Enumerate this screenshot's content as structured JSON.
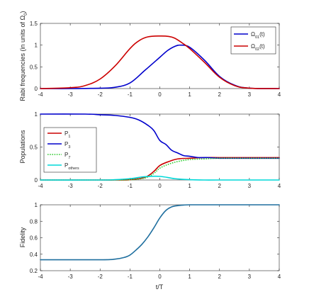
{
  "chart_data": [
    {
      "type": "line",
      "ylabel": "Rabi frequencies (in units of Ω0)",
      "ylabel_parts": {
        "main": "Rabi frequencies (in units of Ω",
        "sub": "0",
        "close": ")"
      },
      "xlim": [
        -4,
        4
      ],
      "ylim": [
        0,
        1.5
      ],
      "xticks": [
        -4,
        -3,
        -2,
        -1,
        0,
        1,
        2,
        3,
        4
      ],
      "yticks": [
        0,
        0.5,
        1,
        1.5
      ],
      "legend_position": "top-right",
      "series": [
        {
          "name": "Ω01(t)",
          "label_main": "Ω",
          "label_sub": "01",
          "label_suffix": "(t)",
          "color": "#0000cc",
          "x": [
            -4,
            -3,
            -2,
            -1.5,
            -1,
            -0.5,
            0,
            0.25,
            0.5,
            0.7,
            1,
            1.5,
            2,
            2.5,
            3,
            4
          ],
          "y": [
            0,
            0,
            0.01,
            0.03,
            0.13,
            0.42,
            0.72,
            0.87,
            0.97,
            1.0,
            0.95,
            0.65,
            0.28,
            0.08,
            0.01,
            0
          ]
        },
        {
          "name": "Ω02(t)",
          "label_main": "Ω",
          "label_sub": "02",
          "label_suffix": "(t)",
          "color": "#cc0000",
          "x": [
            -4,
            -3,
            -2.5,
            -2,
            -1.5,
            -1,
            -0.7,
            -0.4,
            0,
            0.3,
            0.5,
            0.75,
            1,
            1.5,
            2,
            2.5,
            3,
            4
          ],
          "y": [
            0,
            0.02,
            0.07,
            0.22,
            0.52,
            0.92,
            1.1,
            1.19,
            1.21,
            1.2,
            1.16,
            1.05,
            0.92,
            0.6,
            0.26,
            0.07,
            0.01,
            0
          ]
        }
      ]
    },
    {
      "type": "line",
      "ylabel": "Populations",
      "xlim": [
        -4,
        4
      ],
      "ylim": [
        0,
        1
      ],
      "xticks": [
        -4,
        -3,
        -2,
        -1,
        0,
        1,
        2,
        3,
        4
      ],
      "yticks": [
        0,
        0.5,
        1
      ],
      "legend_position": "middle-left",
      "series": [
        {
          "name": "P1",
          "label_main": "P",
          "label_sub": "1",
          "label_suffix": "",
          "color": "#cc0000",
          "dash": "solid",
          "x": [
            -4,
            -2,
            -1.5,
            -1,
            -0.5,
            -0.2,
            0,
            0.3,
            0.6,
            1,
            1.5,
            2,
            3,
            4
          ],
          "y": [
            0,
            0,
            0,
            0.005,
            0.04,
            0.13,
            0.22,
            0.28,
            0.32,
            0.33,
            0.34,
            0.34,
            0.34,
            0.34
          ]
        },
        {
          "name": "P3",
          "label_main": "P",
          "label_sub": "3",
          "label_suffix": "",
          "color": "#0000cc",
          "dash": "solid",
          "x": [
            -4,
            -2.5,
            -2,
            -1.5,
            -1,
            -0.7,
            -0.4,
            -0.2,
            0,
            0.2,
            0.4,
            0.6,
            0.8,
            1,
            1.3,
            1.6,
            2,
            3,
            4
          ],
          "y": [
            1,
            1,
            0.99,
            0.98,
            0.95,
            0.91,
            0.83,
            0.75,
            0.6,
            0.54,
            0.45,
            0.41,
            0.37,
            0.36,
            0.34,
            0.34,
            0.33,
            0.33,
            0.33
          ]
        },
        {
          "name": "P7",
          "label_main": "P",
          "label_sub": "7",
          "label_suffix": "",
          "color": "#33cc33",
          "dash": "dotted",
          "x": [
            -4,
            -2,
            -1.5,
            -1,
            -0.5,
            -0.2,
            0,
            0.3,
            0.6,
            1,
            1.5,
            2,
            3,
            4
          ],
          "y": [
            0,
            0,
            0,
            0.003,
            0.03,
            0.1,
            0.18,
            0.24,
            0.28,
            0.31,
            0.32,
            0.33,
            0.33,
            0.33
          ]
        },
        {
          "name": "Pothers",
          "label_main": "P",
          "label_sub": "others",
          "label_suffix": "",
          "color": "#00d8d8",
          "dash": "solid",
          "x": [
            -4,
            -2,
            -1.5,
            -1,
            -0.5,
            0,
            0.5,
            1,
            1.5,
            2,
            4
          ],
          "y": [
            0,
            0,
            0.005,
            0.02,
            0.05,
            0.055,
            0.02,
            0.005,
            0,
            0,
            0
          ]
        }
      ]
    },
    {
      "type": "line",
      "ylabel": "Fidelity",
      "xlabel": "t/T",
      "xlim": [
        -4,
        4
      ],
      "ylim": [
        0.2,
        1
      ],
      "xticks": [
        -4,
        -3,
        -2,
        -1,
        0,
        1,
        2,
        3,
        4
      ],
      "yticks": [
        0.2,
        0.4,
        0.6,
        0.8,
        1
      ],
      "series": [
        {
          "name": "Fidelity",
          "color": "#1f6f9f",
          "x": [
            -4,
            -2,
            -1.5,
            -1.2,
            -1,
            -0.8,
            -0.6,
            -0.4,
            -0.2,
            0,
            0.2,
            0.4,
            0.6,
            0.8,
            1,
            1.5,
            2,
            4
          ],
          "y": [
            0.333,
            0.333,
            0.34,
            0.36,
            0.39,
            0.45,
            0.52,
            0.61,
            0.72,
            0.84,
            0.93,
            0.975,
            0.99,
            0.997,
            1.0,
            1.0,
            1.0,
            1.0
          ]
        }
      ]
    }
  ]
}
